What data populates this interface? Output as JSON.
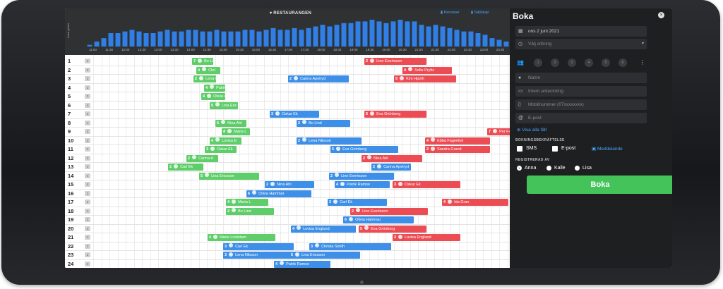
{
  "topbar": {
    "title": "RESTAURANGEN",
    "y_axis_label": "Antal gäster",
    "link_persons": "Personer",
    "link_booking": "Sällskap",
    "hours": [
      "11:00",
      "11:30",
      "12:00",
      "12:30",
      "13:00",
      "13:30",
      "14:00",
      "14:30",
      "15:00",
      "15:30",
      "16:00",
      "16:30",
      "17:00",
      "17:30",
      "18:00",
      "18:30",
      "19:00",
      "19:30",
      "20:00",
      "20:30",
      "21:00",
      "21:30",
      "22:00",
      "22:30",
      "23:00",
      "23:30"
    ]
  },
  "chart_data": {
    "type": "bar",
    "title": "RESTAURANGEN",
    "ylabel": "Antal gäster",
    "values": [
      1,
      3,
      5,
      8,
      8,
      9,
      10,
      9,
      8,
      8,
      9,
      10,
      9,
      9,
      10,
      10,
      9,
      9,
      10,
      9,
      9,
      9,
      10,
      10,
      9,
      10,
      11,
      10,
      10,
      11,
      10,
      11,
      12,
      13,
      12,
      13,
      14,
      14,
      15,
      15,
      16,
      15,
      14,
      15,
      16,
      15,
      15,
      13,
      12,
      13,
      12,
      11,
      10,
      9,
      9,
      8,
      7,
      5,
      4,
      3
    ]
  },
  "tables": [
    {
      "num": "1",
      "cap": "2"
    },
    {
      "num": "2",
      "cap": "2"
    },
    {
      "num": "3",
      "cap": "2"
    },
    {
      "num": "4",
      "cap": "2"
    },
    {
      "num": "5",
      "cap": "2"
    },
    {
      "num": "6",
      "cap": "4"
    },
    {
      "num": "7",
      "cap": "2"
    },
    {
      "num": "8",
      "cap": "4"
    },
    {
      "num": "9",
      "cap": "4"
    },
    {
      "num": "10",
      "cap": "4"
    },
    {
      "num": "11",
      "cap": "2"
    },
    {
      "num": "12",
      "cap": "4"
    },
    {
      "num": "13",
      "cap": "4"
    },
    {
      "num": "14",
      "cap": "4"
    },
    {
      "num": "15",
      "cap": "4"
    },
    {
      "num": "16",
      "cap": "2"
    },
    {
      "num": "17",
      "cap": "2"
    },
    {
      "num": "18",
      "cap": "4"
    },
    {
      "num": "19",
      "cap": "4"
    },
    {
      "num": "20",
      "cap": "4"
    },
    {
      "num": "21",
      "cap": "4"
    },
    {
      "num": "22",
      "cap": "2"
    },
    {
      "num": "23",
      "cap": "2"
    },
    {
      "num": "24",
      "cap": "2"
    }
  ],
  "bookings": [
    {
      "row": 0,
      "start": 180,
      "width": 30,
      "color": "g",
      "guests": "7",
      "name": "Bo Li"
    },
    {
      "row": 1,
      "start": 186,
      "width": 34,
      "color": "g",
      "guests": "4",
      "name": "Chri"
    },
    {
      "row": 2,
      "start": 182,
      "width": 32,
      "color": "g",
      "guests": "2",
      "name": "Lena Ni"
    },
    {
      "row": 3,
      "start": 197,
      "width": 30,
      "color": "g",
      "guests": "4",
      "name": "Patrik R"
    },
    {
      "row": 4,
      "start": 193,
      "width": 34,
      "color": "g",
      "guests": "4",
      "name": "Olivia H"
    },
    {
      "row": 5,
      "start": 205,
      "width": 40,
      "color": "g",
      "guests": "5",
      "name": "Lina Eric"
    },
    {
      "row": 7,
      "start": 213,
      "width": 44,
      "color": "g",
      "guests": "5",
      "name": "Nina Ahl"
    },
    {
      "row": 8,
      "start": 222,
      "width": 40,
      "color": "g",
      "guests": "4",
      "name": "Maria L"
    },
    {
      "row": 9,
      "start": 205,
      "width": 45,
      "color": "g",
      "guests": "4",
      "name": "Lovisa E"
    },
    {
      "row": 10,
      "start": 198,
      "width": 45,
      "color": "g",
      "guests": "3",
      "name": "Oskar Ek"
    },
    {
      "row": 11,
      "start": 172,
      "width": 45,
      "color": "g",
      "guests": "2",
      "name": "Carina A"
    },
    {
      "row": 12,
      "start": 146,
      "width": 50,
      "color": "g",
      "guests": "2",
      "name": "Carl Ek"
    },
    {
      "row": 13,
      "start": 190,
      "width": 85,
      "color": "g",
      "guests": "5",
      "name": "Lina Ericsson"
    },
    {
      "row": 16,
      "start": 228,
      "width": 60,
      "color": "g",
      "guests": "4",
      "name": "Maria L"
    },
    {
      "row": 17,
      "start": 228,
      "width": 68,
      "color": "g",
      "guests": "2",
      "name": "Bo Lind"
    },
    {
      "row": 20,
      "start": 202,
      "width": 96,
      "color": "g",
      "guests": "4",
      "name": "Maria Lindstam"
    },
    {
      "row": 2,
      "start": 316,
      "width": 86,
      "color": "b",
      "guests": "2",
      "name": "Carina Apelryd"
    },
    {
      "row": 6,
      "start": 290,
      "width": 70,
      "color": "b",
      "guests": "3",
      "name": "Oskar Ek"
    },
    {
      "row": 7,
      "start": 328,
      "width": 76,
      "color": "b",
      "guests": "2",
      "name": "Bo Lind"
    },
    {
      "row": 9,
      "start": 328,
      "width": 92,
      "color": "b",
      "guests": "2",
      "name": "Lena Nilsson"
    },
    {
      "row": 10,
      "start": 376,
      "width": 96,
      "color": "b",
      "guests": "5",
      "name": "Eva Grönberg"
    },
    {
      "row": 12,
      "start": 434,
      "width": 56,
      "color": "b",
      "guests": "2",
      "name": "Carina Apelryd"
    },
    {
      "row": 13,
      "start": 374,
      "width": 92,
      "color": "b",
      "guests": "2",
      "name": "Linn Evertsson"
    },
    {
      "row": 14,
      "start": 283,
      "width": 70,
      "color": "b",
      "guests": "2",
      "name": "Nina Ahl"
    },
    {
      "row": 14,
      "start": 382,
      "width": 78,
      "color": "b",
      "guests": "4",
      "name": "Patrik Ramse"
    },
    {
      "row": 15,
      "start": 257,
      "width": 92,
      "color": "b",
      "guests": "6",
      "name": "Olivia Hammar"
    },
    {
      "row": 16,
      "start": 372,
      "width": 84,
      "color": "b",
      "guests": "3",
      "name": "Carl Ek"
    },
    {
      "row": 18,
      "start": 394,
      "width": 100,
      "color": "b",
      "guests": "6",
      "name": "Olivia Hammar"
    },
    {
      "row": 19,
      "start": 320,
      "width": 92,
      "color": "b",
      "guests": "4",
      "name": "Lovisa Englund"
    },
    {
      "row": 21,
      "start": 224,
      "width": 100,
      "color": "b",
      "guests": "3",
      "name": "Carl Ek"
    },
    {
      "row": 21,
      "start": 346,
      "width": 116,
      "color": "b",
      "guests": "3",
      "name": "Christa Smith"
    },
    {
      "row": 22,
      "start": 224,
      "width": 96,
      "color": "b",
      "guests": "3",
      "name": "Lena Nilsson"
    },
    {
      "row": 22,
      "start": 318,
      "width": 100,
      "color": "b",
      "guests": "5",
      "name": "Lina Ericsson"
    },
    {
      "row": 23,
      "start": 296,
      "width": 80,
      "color": "b",
      "guests": "4",
      "name": "Patrik Ramse"
    },
    {
      "row": 0,
      "start": 424,
      "width": 88,
      "color": "r",
      "guests": "2",
      "name": "Linn Evertsson"
    },
    {
      "row": 1,
      "start": 478,
      "width": 70,
      "color": "r",
      "guests": "4",
      "name": "Sofie Pryltz"
    },
    {
      "row": 2,
      "start": 466,
      "width": 88,
      "color": "r",
      "guests": "5",
      "name": "Kim Hjarth"
    },
    {
      "row": 6,
      "start": 424,
      "width": 88,
      "color": "r",
      "guests": "5",
      "name": "Eva Grönberg"
    },
    {
      "row": 8,
      "start": 598,
      "width": 40,
      "color": "r",
      "guests": "7",
      "name": "Per Fadh"
    },
    {
      "row": 9,
      "start": 510,
      "width": 92,
      "color": "r",
      "guests": "4",
      "name": "Ebba Fagerlind"
    },
    {
      "row": 10,
      "start": 510,
      "width": 92,
      "color": "r",
      "guests": "2",
      "name": "Sandra Grand"
    },
    {
      "row": 11,
      "start": 420,
      "width": 86,
      "color": "r",
      "guests": "2",
      "name": "Nina Ahl"
    },
    {
      "row": 14,
      "start": 464,
      "width": 96,
      "color": "r",
      "guests": "3",
      "name": "Oskar Ek"
    },
    {
      "row": 16,
      "start": 534,
      "width": 94,
      "color": "r",
      "guests": "4",
      "name": "Ida Gran"
    },
    {
      "row": 17,
      "start": 404,
      "width": 110,
      "color": "r",
      "guests": "2",
      "name": "Linn Evertsson"
    },
    {
      "row": 19,
      "start": 416,
      "width": 96,
      "color": "r",
      "guests": "5",
      "name": "Eva Grönberg"
    },
    {
      "row": 20,
      "start": 464,
      "width": 96,
      "color": "r",
      "guests": "2",
      "name": "Lovisa Englund"
    }
  ],
  "panel": {
    "title": "Boka",
    "date": "ons 2 juni 2021",
    "seating_placeholder": "Välj sittning",
    "guest_options": [
      "1",
      "2",
      "3",
      "4",
      "5",
      "6"
    ],
    "name_placeholder": "Namn",
    "note_placeholder": "Intern anteckning",
    "phone_placeholder": "Mobilnummer (07xxxxxxxx)",
    "email_placeholder": "E-post",
    "show_all": "Visa alla fält",
    "confirm_label": "BOKNINGSBEKRÄFTELSE",
    "sms": "SMS",
    "email_opt": "E-post",
    "message_link": "Meddelande",
    "registered_label": "REGISTRERAD AV",
    "staff": [
      "Anna",
      "Kalle",
      "Lisa"
    ],
    "book_button": "Boka"
  }
}
